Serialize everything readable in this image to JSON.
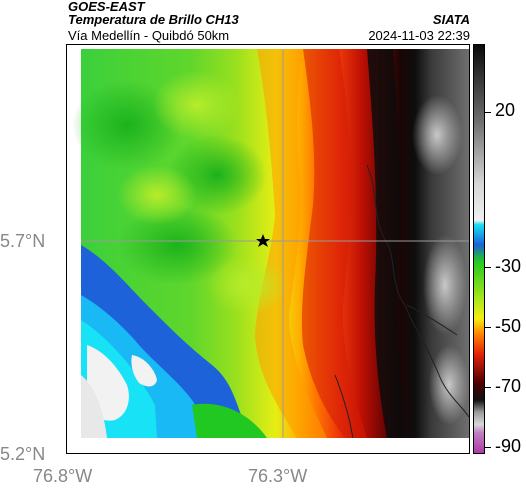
{
  "header": {
    "satellite": "GOES-EAST",
    "product": "Temperatura de Brillo CH13",
    "route": "Vía Medellín - Quibdó 50km",
    "org": "SIATA",
    "timestamp": "2024-11-03 22:39"
  },
  "axes": {
    "lat_labels": [
      "5.7°N",
      "5.2°N"
    ],
    "lon_labels": [
      "76.8°W",
      "76.3°W"
    ]
  },
  "colorbar": {
    "labels": [
      "20",
      "-30",
      "-50",
      "-70",
      "-90"
    ],
    "colors": {
      "magenta": "#b03aa8",
      "dark": "#111111",
      "red": "#e0200a",
      "orange": "#ff8000",
      "yellow": "#f5ee12",
      "green": "#22c822",
      "blue": "#1d62d8",
      "cyan": "#18e2f5",
      "gray_light": "#d8d8d8",
      "gray_dark": "#555555"
    }
  },
  "map": {
    "marker": "star-icon"
  }
}
